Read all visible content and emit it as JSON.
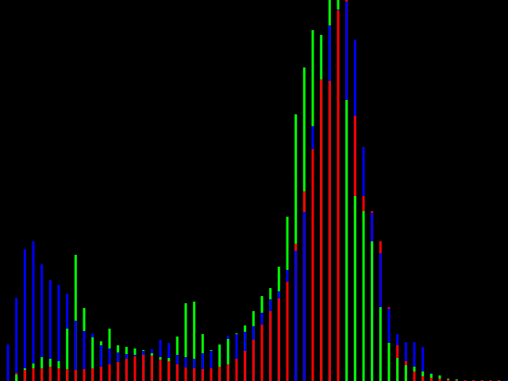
{
  "chart_data": {
    "type": "bar",
    "title": "",
    "xlabel": "",
    "ylabel": "",
    "ylim": [
      0,
      480
    ],
    "grid": false,
    "legend": "none",
    "background": "#000000",
    "series": [
      {
        "color": "#0000ff",
        "values": [
          46,
          105,
          166,
          176,
          147,
          127,
          121,
          110,
          76,
          63,
          60,
          45,
          41,
          36,
          34,
          33,
          38,
          40,
          52,
          48,
          33,
          30,
          28,
          35,
          38,
          46,
          57,
          59,
          62,
          69,
          86,
          103,
          113,
          140,
          164,
          213,
          321,
          436,
          448,
          468,
          478,
          430,
          295,
          212,
          161,
          91,
          59,
          49,
          49,
          43,
          10,
          3,
          2,
          2,
          1,
          1,
          1,
          1,
          1,
          1
        ]
      },
      {
        "color": "#00ff00",
        "values": [
          0,
          8,
          16,
          22,
          30,
          28,
          25,
          66,
          159,
          92,
          55,
          50,
          66,
          45,
          43,
          41,
          39,
          35,
          30,
          29,
          56,
          98,
          100,
          59,
          39,
          46,
          53,
          60,
          70,
          88,
          107,
          117,
          144,
          207,
          336,
          395,
          442,
          436,
          480,
          480,
          354,
          233,
          214,
          176,
          93,
          48,
          29,
          20,
          18,
          12,
          9,
          7,
          3,
          2,
          1,
          1,
          1,
          1,
          1,
          0
        ]
      },
      {
        "color": "#ff0000",
        "values": [
          0,
          10,
          14,
          16,
          16,
          18,
          16,
          15,
          14,
          15,
          16,
          18,
          21,
          24,
          28,
          31,
          33,
          32,
          27,
          25,
          21,
          17,
          16,
          15,
          16,
          18,
          21,
          28,
          38,
          52,
          71,
          88,
          104,
          125,
          173,
          239,
          292,
          380,
          378,
          467,
          480,
          334,
          233,
          214,
          176,
          93,
          45,
          25,
          12,
          6,
          4,
          3,
          2,
          1,
          1,
          1,
          1,
          1,
          1,
          0
        ]
      }
    ]
  }
}
